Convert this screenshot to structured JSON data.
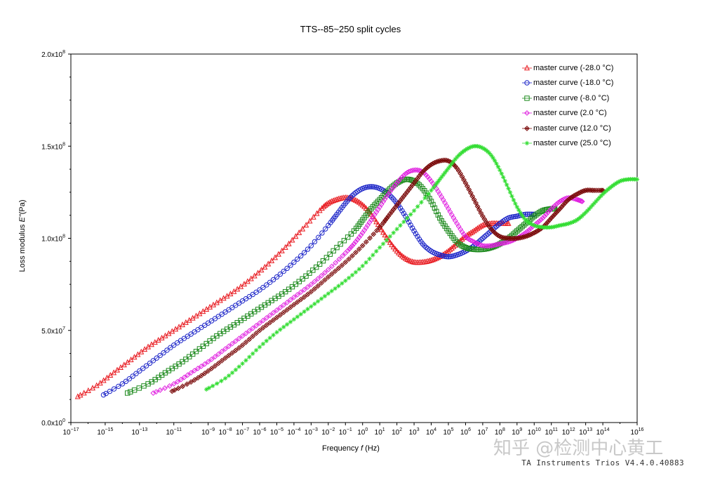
{
  "chart_data": {
    "type": "line",
    "title": "TTS--85~250 split cycles",
    "xlabel_prefix": "Frequency",
    "xlabel_var": "f",
    "xlabel_unit": "(Hz)",
    "ylabel_prefix": "Loss modulus",
    "ylabel_var": "E\"",
    "ylabel_unit": "(Pa)",
    "xscale": "log",
    "xlim_exp": [
      -17,
      16
    ],
    "ylim": [
      0,
      200000000
    ],
    "yticks": [
      {
        "value": 0,
        "mant": "0.0x10",
        "exp": "0"
      },
      {
        "value": 50000000,
        "mant": "5.0x10",
        "exp": "7"
      },
      {
        "value": 100000000,
        "mant": "1.0x10",
        "exp": "8"
      },
      {
        "value": 150000000,
        "mant": "1.5x10",
        "exp": "8"
      },
      {
        "value": 200000000,
        "mant": "2.0x10",
        "exp": "8"
      }
    ],
    "xtick_exps": [
      -17,
      -15,
      -13,
      -11,
      -9,
      -8,
      -7,
      -6,
      -5,
      -4,
      -3,
      -2,
      -1,
      0,
      1,
      2,
      3,
      4,
      5,
      6,
      7,
      8,
      9,
      10,
      11,
      12,
      13,
      14,
      16
    ],
    "legend_position": "top-right",
    "series": [
      {
        "name": "master curve (-28.0 °C)",
        "color": "#e8191f",
        "marker": "triangle",
        "x_exp": [
          -16.6,
          -15.5,
          -14.5,
          -13.5,
          -12.5,
          -11.5,
          -10.5,
          -9.5,
          -8.5,
          -7.5,
          -6.5,
          -5.5,
          -4.5,
          -3.5,
          -2.5,
          -2,
          -1.5,
          -1,
          -0.5,
          0,
          0.5,
          1,
          1.5,
          2,
          2.5,
          3,
          3.5,
          4,
          4.5,
          5,
          5.5,
          6,
          6.5,
          7,
          7.5,
          8,
          8.5
        ],
        "values": [
          14,
          20,
          27,
          34,
          41,
          47,
          53,
          59,
          65,
          71,
          78,
          86,
          95,
          105,
          115,
          119,
          121,
          122,
          121,
          118,
          113,
          106,
          99,
          93,
          89,
          87,
          87,
          88,
          90,
          93,
          97,
          101,
          104,
          107,
          108,
          108,
          108
        ]
      },
      {
        "name": "master curve (-18.0 °C)",
        "color": "#1c25c8",
        "marker": "circle",
        "x_exp": [
          -15.1,
          -14,
          -13,
          -12,
          -11,
          -10,
          -9,
          -8,
          -7,
          -6,
          -5,
          -4,
          -3,
          -2,
          -1.5,
          -1,
          -0.5,
          0,
          0.5,
          1,
          1.5,
          2,
          2.5,
          3,
          3.5,
          4,
          4.5,
          5,
          5.5,
          6,
          6.5,
          7,
          7.5,
          8,
          8.5,
          9,
          9.5,
          10
        ],
        "values": [
          15,
          21,
          28,
          35,
          42,
          48,
          54,
          60,
          66,
          72,
          79,
          87,
          96,
          107,
          113,
          119,
          124,
          127,
          128,
          127,
          124,
          119,
          112,
          104,
          97,
          93,
          91,
          90,
          91,
          93,
          96,
          100,
          104,
          108,
          111,
          112,
          113,
          113
        ]
      },
      {
        "name": "master curve (-8.0 °C)",
        "color": "#1d8a1d",
        "marker": "square",
        "x_exp": [
          -13.7,
          -12.5,
          -11.5,
          -10.5,
          -9.5,
          -8.5,
          -7.5,
          -6.5,
          -5.5,
          -4.5,
          -3.5,
          -2.5,
          -1.5,
          -0.5,
          0,
          0.5,
          1,
          1.5,
          2,
          2.5,
          3,
          3.5,
          4,
          4.5,
          5,
          5.5,
          6,
          6.5,
          7,
          7.5,
          8,
          8.5,
          9,
          9.5,
          10,
          10.5,
          11,
          11.2
        ],
        "values": [
          16,
          21,
          27,
          33,
          40,
          47,
          53,
          59,
          65,
          71,
          78,
          86,
          95,
          104,
          110,
          116,
          121,
          126,
          130,
          132,
          131,
          127,
          120,
          111,
          104,
          98,
          95,
          94,
          94,
          95,
          97,
          100,
          104,
          108,
          112,
          115,
          116,
          116
        ]
      },
      {
        "name": "master curve (2.0 °C)",
        "color": "#e020e0",
        "marker": "diamond",
        "x_exp": [
          -12.2,
          -11,
          -10,
          -9,
          -8,
          -7,
          -6,
          -5,
          -4,
          -3,
          -2,
          -1,
          -0.5,
          0,
          0.5,
          1,
          1.5,
          2,
          2.5,
          3,
          3.5,
          4,
          4.5,
          5,
          5.5,
          6,
          6.5,
          7,
          7.5,
          8,
          8.5,
          9,
          9.5,
          10,
          10.5,
          11,
          11.5,
          12,
          12.5,
          12.8
        ],
        "values": [
          16,
          21,
          27,
          33,
          40,
          47,
          54,
          61,
          68,
          75,
          83,
          92,
          97,
          103,
          110,
          117,
          124,
          130,
          135,
          137,
          136,
          131,
          124,
          116,
          108,
          101,
          98,
          96,
          96,
          97,
          98,
          100,
          103,
          107,
          111,
          116,
          120,
          122,
          121,
          120
        ]
      },
      {
        "name": "master curve (12.0 °C)",
        "color": "#7a0a0a",
        "marker": "diamond-x",
        "x_exp": [
          -11.1,
          -10,
          -9,
          -8,
          -7,
          -6,
          -5,
          -4,
          -3,
          -2,
          -1,
          0,
          1,
          1.5,
          2,
          2.5,
          3,
          3.5,
          4,
          4.5,
          5,
          5.5,
          6,
          6.5,
          7,
          7.5,
          8,
          8.5,
          9,
          9.5,
          10,
          10.5,
          11,
          11.5,
          12,
          12.5,
          13,
          13.5,
          14
        ],
        "values": [
          17,
          22,
          28,
          35,
          42,
          50,
          57,
          64,
          71,
          79,
          87,
          96,
          106,
          112,
          118,
          124,
          130,
          136,
          140,
          142,
          142,
          138,
          130,
          121,
          112,
          105,
          101,
          100,
          100,
          101,
          103,
          106,
          111,
          116,
          121,
          124,
          126,
          126,
          126
        ]
      },
      {
        "name": "master curve (25.0 °C)",
        "color": "#33dd33",
        "marker": "star",
        "x_exp": [
          -9.1,
          -8,
          -7,
          -6,
          -5,
          -4,
          -3,
          -2,
          -1,
          0,
          1,
          2,
          3,
          4,
          4.5,
          5,
          5.5,
          6,
          6.5,
          7,
          7.5,
          8,
          8.5,
          9,
          9.5,
          10,
          10.5,
          11,
          11.5,
          12,
          12.5,
          13,
          13.5,
          14,
          14.5,
          15,
          15.5,
          16
        ],
        "values": [
          18,
          24,
          32,
          41,
          49,
          56,
          63,
          70,
          77,
          85,
          95,
          105,
          115,
          126,
          132,
          138,
          144,
          148,
          150,
          149,
          145,
          137,
          127,
          117,
          110,
          107,
          106,
          106,
          107,
          108,
          110,
          114,
          119,
          124,
          128,
          131,
          132,
          132
        ]
      }
    ]
  },
  "footer": "TA Instruments Trios V4.4.0.40883",
  "watermark": "知乎 @检测中心黄工"
}
